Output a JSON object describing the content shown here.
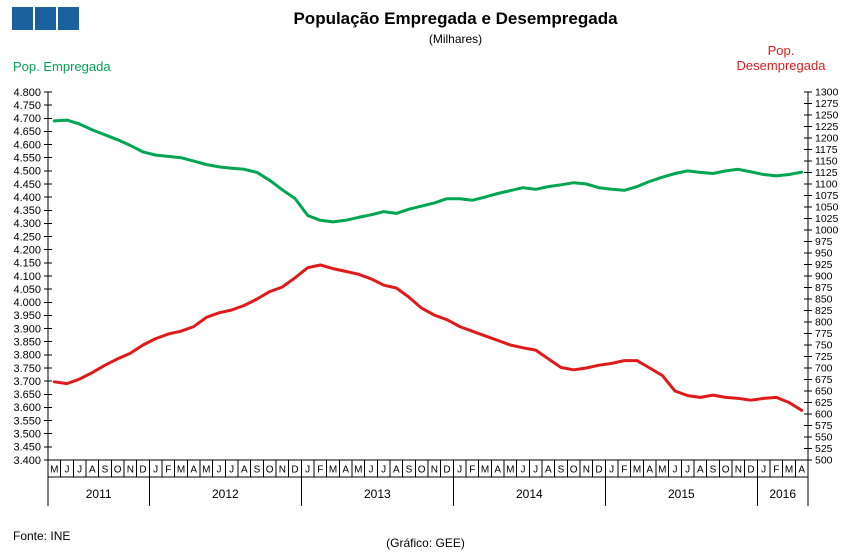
{
  "header": {
    "title": "População Empregada e Desempregada",
    "subtitle": "(Milhares)",
    "logo_color": "#1A619E"
  },
  "footer": {
    "source": "Fonte: INE",
    "credit": "(Gráfico: GEE)"
  },
  "chart_data": {
    "type": "line",
    "title": "População Empregada e Desempregada",
    "subtitle": "(Milhares)",
    "grid": false,
    "x": {
      "months": [
        "M",
        "J",
        "J",
        "A",
        "S",
        "O",
        "N",
        "D",
        "J",
        "F",
        "M",
        "A",
        "M",
        "J",
        "J",
        "A",
        "S",
        "O",
        "N",
        "D",
        "J",
        "F",
        "M",
        "A",
        "M",
        "J",
        "J",
        "A",
        "S",
        "O",
        "N",
        "D",
        "J",
        "F",
        "M",
        "A",
        "M",
        "J",
        "J",
        "A",
        "S",
        "O",
        "N",
        "D",
        "J",
        "F",
        "M",
        "A",
        "M",
        "J",
        "J",
        "A",
        "S",
        "O",
        "N",
        "D",
        "J",
        "F",
        "M",
        "A"
      ],
      "year_groups": [
        {
          "label": "2011",
          "months": 8
        },
        {
          "label": "2012",
          "months": 12
        },
        {
          "label": "2013",
          "months": 12
        },
        {
          "label": "2014",
          "months": 12
        },
        {
          "label": "2015",
          "months": 12
        },
        {
          "label": "2016",
          "months": 4
        }
      ]
    },
    "axes": {
      "left": {
        "label": "Pop. Empregada",
        "min": 3400,
        "max": 4800,
        "step": 50,
        "color": "#00A551",
        "format": "milhares-dot"
      },
      "right": {
        "label_line1": "Pop.",
        "label_line2": "Desempregada",
        "min": 500,
        "max": 1300,
        "step": 25,
        "color": "#E01A1A",
        "format": "integer"
      }
    },
    "series": [
      {
        "name": "Pop. Empregada",
        "axis": "left",
        "color": "#00A551",
        "values": [
          4690,
          4693,
          4678,
          4656,
          4637,
          4618,
          4597,
          4572,
          4560,
          4555,
          4550,
          4537,
          4524,
          4515,
          4510,
          4506,
          4494,
          4464,
          4428,
          4395,
          4330,
          4312,
          4306,
          4312,
          4323,
          4333,
          4345,
          4338,
          4354,
          4366,
          4378,
          4394,
          4394,
          4388,
          4400,
          4414,
          4425,
          4436,
          4430,
          4440,
          4447,
          4455,
          4450,
          4436,
          4430,
          4426,
          4440,
          4460,
          4476,
          4490,
          4500,
          4494,
          4490,
          4500,
          4506,
          4496,
          4486,
          4481,
          4486,
          4495
        ]
      },
      {
        "name": "Pop. Desempregada",
        "axis": "right",
        "color": "#E01A1A",
        "values": [
          670,
          666,
          676,
          690,
          706,
          720,
          732,
          750,
          764,
          774,
          780,
          790,
          810,
          820,
          826,
          836,
          850,
          866,
          876,
          896,
          918,
          924,
          916,
          910,
          904,
          894,
          880,
          874,
          854,
          830,
          815,
          805,
          790,
          780,
          770,
          760,
          750,
          744,
          739,
          720,
          701,
          696,
          700,
          706,
          710,
          716,
          716,
          700,
          684,
          650,
          640,
          636,
          641,
          636,
          634,
          630,
          634,
          636,
          625,
          608
        ]
      }
    ]
  }
}
